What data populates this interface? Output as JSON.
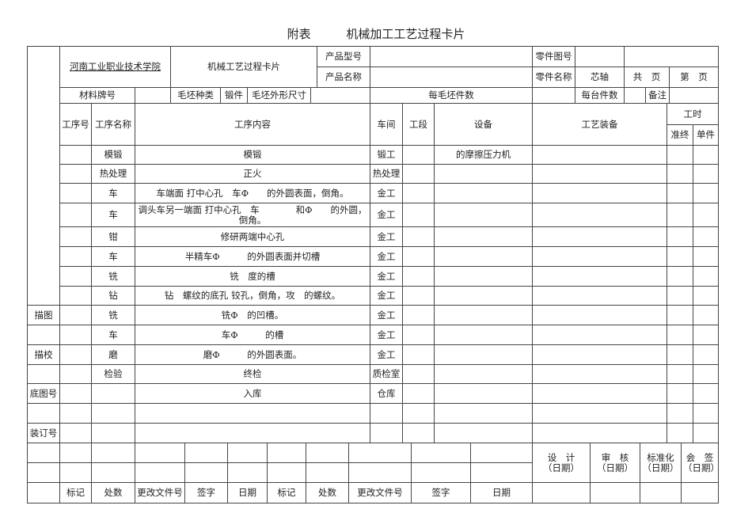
{
  "title": {
    "prefix": "附表",
    "main": "机械加工工艺过程卡片"
  },
  "header": {
    "school": "河南工业职业技术学院",
    "card_title": "机械工艺过程卡片",
    "product_model_label": "产品型号",
    "product_name_label": "产品名称",
    "part_drawing_label": "零件图号",
    "part_name_label": "零件名称",
    "part_name_value": "芯轴",
    "total_pages": "共　页",
    "page_no": "第　页"
  },
  "material": {
    "material_label": "材料牌号",
    "blank_type_label": "毛坯种类",
    "blank_type_value": "锻件",
    "blank_size_label": "毛坯外形尺寸",
    "per_blank_label": "每毛坯件数",
    "per_unit_label": "每台件数",
    "remarks_label": "备注"
  },
  "columns": {
    "op_no": "工序号",
    "op_name": "工序名称",
    "op_content": "工序内容",
    "workshop": "车间",
    "section": "工段",
    "equipment": "设备",
    "tooling": "工艺装备",
    "man_hours": "工时",
    "setup": "准终",
    "unit": "单件"
  },
  "rows": [
    {
      "name": "模锻",
      "content": "模锻",
      "workshop": "锻工",
      "equipment": "的摩擦压力机"
    },
    {
      "name": "热处理",
      "content": "正火",
      "workshop": "热处理",
      "equipment": ""
    },
    {
      "name": "车",
      "content": "车端面 打中心孔　车Φ　　的外圆表面，倒角。",
      "workshop": "金工",
      "equipment": ""
    },
    {
      "name": "车",
      "content": "调头车另一端面 打中心孔　车　　　　和Φ　　的外圆，倒角。",
      "workshop": "金工",
      "equipment": ""
    },
    {
      "name": "钳",
      "content": "修研两端中心孔",
      "workshop": "金工",
      "equipment": ""
    },
    {
      "name": "车",
      "content": "半精车Φ　　　的外圆表面并切槽",
      "workshop": "金工",
      "equipment": ""
    },
    {
      "name": "铣",
      "content": "铣　度的槽",
      "workshop": "金工",
      "equipment": ""
    },
    {
      "name": "钻",
      "content": "钻　螺纹的底孔 铰孔，倒角，攻　的螺纹。",
      "workshop": "金工",
      "equipment": ""
    },
    {
      "name": "铣",
      "content": "铣Φ　的凹槽。",
      "workshop": "金工",
      "equipment": ""
    },
    {
      "name": "车",
      "content": "车Φ　　　的槽",
      "workshop": "金工",
      "equipment": ""
    },
    {
      "name": "磨",
      "content": "磨Φ　　　的外圆表面。",
      "workshop": "金工",
      "equipment": ""
    },
    {
      "name": "检验",
      "content": "终检",
      "workshop": "质检室",
      "equipment": ""
    },
    {
      "name": "",
      "content": "入库",
      "workshop": "仓库",
      "equipment": ""
    },
    {
      "name": "",
      "content": "",
      "workshop": "",
      "equipment": ""
    },
    {
      "name": "",
      "content": "",
      "workshop": "",
      "equipment": ""
    }
  ],
  "side": {
    "trace": "描图",
    "trace_check": "描校",
    "base_drawing_no": "底图号",
    "binding_no": "装订号"
  },
  "footer": {
    "mark": "标记",
    "places": "处数",
    "change_doc": "更改文件号",
    "sign": "签字",
    "date": "日期",
    "design": "设　计\n（日期）",
    "review": "审　核\n（日期）",
    "standard": "标准化\n（日期）",
    "countersign": "会　签\n（日期）"
  }
}
